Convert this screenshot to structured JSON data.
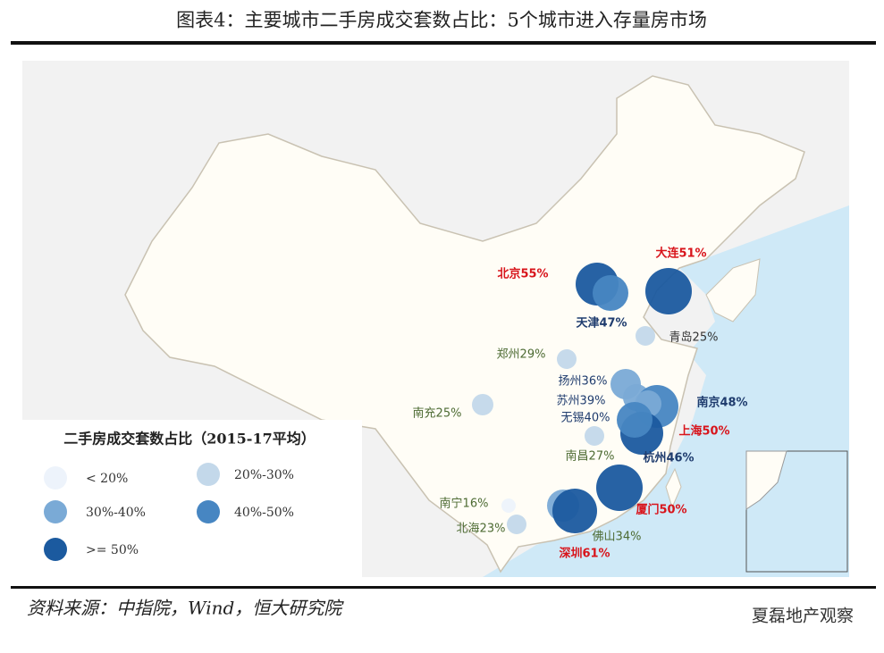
{
  "header": {
    "title": "图表4：主要城市二手房成交套数占比：5个城市进入存量房市场"
  },
  "legend": {
    "title": "二手房成交套数占比（2015-17平均）",
    "items": [
      {
        "label": "< 20%",
        "color": "#edf3fb"
      },
      {
        "label": "20%-30%",
        "color": "#c3d8ea"
      },
      {
        "label": "30%-40%",
        "color": "#7aaad6"
      },
      {
        "label": "40%-50%",
        "color": "#4786c2"
      },
      {
        "label": ">= 50%",
        "color": "#1b5a9f"
      }
    ]
  },
  "cities": [
    {
      "label": "北京55%",
      "value": 55,
      "color": "#1b5a9f"
    },
    {
      "label": "天津47%",
      "value": 47,
      "color": "#4786c2"
    },
    {
      "label": "大连51%",
      "value": 51,
      "color": "#1b5a9f"
    },
    {
      "label": "青岛25%",
      "value": 25,
      "color": "#c3d8ea"
    },
    {
      "label": "郑州29%",
      "value": 29,
      "color": "#c3d8ea"
    },
    {
      "label": "扬州36%",
      "value": 36,
      "color": "#7aaad6"
    },
    {
      "label": "苏州39%",
      "value": 39,
      "color": "#7aaad6"
    },
    {
      "label": "南京48%",
      "value": 48,
      "color": "#4786c2"
    },
    {
      "label": "无锡40%",
      "value": 40,
      "color": "#7aaad6"
    },
    {
      "label": "上海50%",
      "value": 50,
      "color": "#1b5a9f"
    },
    {
      "label": "杭州46%",
      "value": 46,
      "color": "#4786c2"
    },
    {
      "label": "南充25%",
      "value": 25,
      "color": "#c3d8ea"
    },
    {
      "label": "南昌27%",
      "value": 27,
      "color": "#c3d8ea"
    },
    {
      "label": "厦门50%",
      "value": 50,
      "color": "#1b5a9f"
    },
    {
      "label": "南宁16%",
      "value": 16,
      "color": "#edf3fb"
    },
    {
      "label": "北海23%",
      "value": 23,
      "color": "#c3d8ea"
    },
    {
      "label": "佛山34%",
      "value": 34,
      "color": "#7aaad6"
    },
    {
      "label": "深圳61%",
      "value": 61,
      "color": "#1b5a9f"
    }
  ],
  "footer": {
    "source": "资料来源：中指院，Wind，恒大研究院",
    "watermark": "夏磊地产观察"
  }
}
